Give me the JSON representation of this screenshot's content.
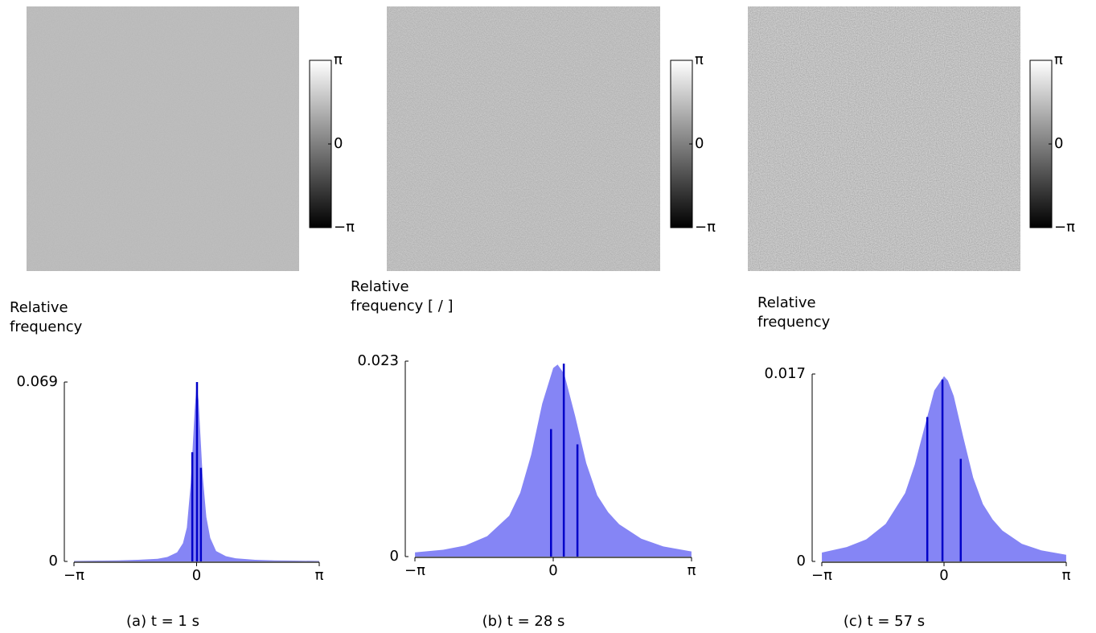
{
  "chart_data": [
    {
      "type": "area",
      "caption": "(a) t = 1 s",
      "ylabel": "Relative frequency",
      "clim": [
        -3.1416,
        3.1416
      ],
      "colorbar_ticks": [
        {
          "value": 3.1416,
          "label": "π"
        },
        0,
        {
          "value": -3.1416,
          "label": "−π"
        }
      ],
      "xlim": [
        -3.1416,
        3.1416
      ],
      "ylim": [
        0,
        0.069
      ],
      "xticks": [
        {
          "value": -3.1416,
          "label": "−π"
        },
        0,
        {
          "value": 3.1416,
          "label": "π"
        }
      ],
      "yticks": [
        0,
        0.069
      ],
      "color": "#8585f5",
      "x": [
        -3.14,
        -2.5,
        -2,
        -1.5,
        -1,
        -0.75,
        -0.5,
        -0.35,
        -0.25,
        -0.15,
        -0.1,
        -0.05,
        0,
        0.05,
        0.1,
        0.15,
        0.25,
        0.35,
        0.5,
        0.75,
        1,
        1.5,
        2,
        2.5,
        3.14
      ],
      "values": [
        0.0002,
        0.0003,
        0.0004,
        0.0006,
        0.001,
        0.0017,
        0.0035,
        0.007,
        0.013,
        0.03,
        0.044,
        0.058,
        0.068,
        0.062,
        0.048,
        0.034,
        0.017,
        0.009,
        0.004,
        0.002,
        0.0012,
        0.0006,
        0.0004,
        0.0003,
        0.0002
      ],
      "lines": {
        "color": "#0000c8",
        "x": [
          -0.11,
          0.01,
          0.11
        ],
        "values": [
          0.042,
          0.069,
          0.036
        ]
      }
    },
    {
      "type": "area",
      "caption": "(b) t = 28 s",
      "ylabel": "Relative frequency [ / ]",
      "clim": [
        -3.1416,
        3.1416
      ],
      "colorbar_ticks": [
        {
          "value": 3.1416,
          "label": "π"
        },
        0,
        {
          "value": -3.1416,
          "label": "−π"
        }
      ],
      "xlim": [
        -3.1416,
        3.1416
      ],
      "ylim": [
        0,
        0.023
      ],
      "xticks": [
        {
          "value": -3.1416,
          "label": "−π"
        },
        0,
        {
          "value": 3.1416,
          "label": "π"
        }
      ],
      "yticks": [
        0,
        0.023
      ],
      "color": "#8585f5",
      "x": [
        -3.14,
        -2.5,
        -2,
        -1.5,
        -1,
        -0.75,
        -0.5,
        -0.25,
        0,
        0.1,
        0.25,
        0.5,
        0.75,
        1,
        1.25,
        1.5,
        2,
        2.5,
        3.14
      ],
      "values": [
        0.0005,
        0.0008,
        0.0013,
        0.0024,
        0.0048,
        0.0075,
        0.012,
        0.018,
        0.0222,
        0.0226,
        0.0215,
        0.0165,
        0.011,
        0.0072,
        0.0052,
        0.0038,
        0.0021,
        0.0012,
        0.0006
      ],
      "lines": {
        "color": "#0000c8",
        "x": [
          -0.05,
          0.24,
          0.55
        ],
        "values": [
          0.015,
          0.0227,
          0.0132
        ]
      }
    },
    {
      "type": "area",
      "caption": "(c) t = 57 s",
      "ylabel": "Relative frequency",
      "clim": [
        -3.1416,
        3.1416
      ],
      "colorbar_ticks": [
        {
          "value": 3.1416,
          "label": "π"
        },
        0,
        {
          "value": -3.1416,
          "label": "−π"
        }
      ],
      "xlim": [
        -3.1416,
        3.1416
      ],
      "ylim": [
        0,
        0.017
      ],
      "xticks": [
        {
          "value": -3.1416,
          "label": "−π"
        },
        0,
        {
          "value": 3.1416,
          "label": "π"
        }
      ],
      "yticks": [
        0,
        0.017
      ],
      "color": "#8585f5",
      "x": [
        -3.14,
        -2.5,
        -2,
        -1.5,
        -1,
        -0.75,
        -0.5,
        -0.25,
        0,
        0.1,
        0.25,
        0.5,
        0.75,
        1,
        1.25,
        1.5,
        2,
        2.5,
        3.14
      ],
      "values": [
        0.0008,
        0.0013,
        0.002,
        0.0034,
        0.0062,
        0.0088,
        0.0122,
        0.0155,
        0.0168,
        0.0164,
        0.015,
        0.0112,
        0.0076,
        0.0052,
        0.0038,
        0.0028,
        0.0016,
        0.001,
        0.0006
      ],
      "lines": {
        "color": "#0000c8",
        "x": [
          -0.43,
          -0.04,
          0.43
        ],
        "values": [
          0.0131,
          0.0165,
          0.0093
        ]
      }
    }
  ]
}
